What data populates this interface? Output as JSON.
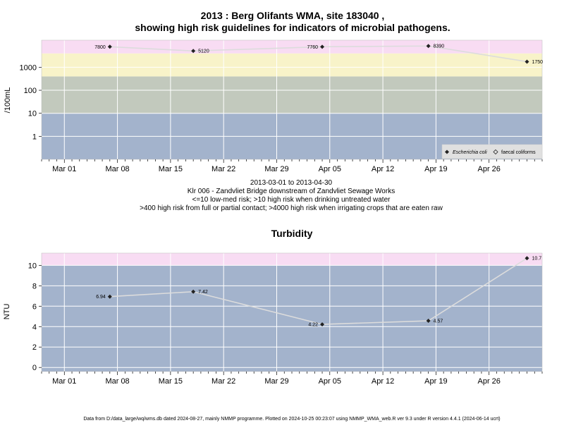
{
  "chart_data": [
    {
      "type": "scatter",
      "title_line1": "2013 : Berg Olifants WMA, site 183040 ,",
      "title_line2": "showing high risk guidelines for indicators of microbial pathogens.",
      "ylabel": "/100mL",
      "xlabel": "",
      "y_scale": "log10",
      "ylim": [
        0.1,
        15000
      ],
      "xlim": [
        "2013-02-26",
        "2013-05-03"
      ],
      "x_ticks": [
        {
          "date": "2013-03-01",
          "label": "Mar 01"
        },
        {
          "date": "2013-03-08",
          "label": "Mar 08"
        },
        {
          "date": "2013-03-15",
          "label": "Mar 15"
        },
        {
          "date": "2013-03-22",
          "label": "Mar 22"
        },
        {
          "date": "2013-03-29",
          "label": "Mar 29"
        },
        {
          "date": "2013-04-05",
          "label": "Apr 05"
        },
        {
          "date": "2013-04-12",
          "label": "Apr 12"
        },
        {
          "date": "2013-04-19",
          "label": "Apr 19"
        },
        {
          "date": "2013-04-26",
          "label": "Apr 26"
        }
      ],
      "y_ticks": [
        {
          "value": 1,
          "label": "1"
        },
        {
          "value": 10,
          "label": "10"
        },
        {
          "value": 100,
          "label": "100"
        },
        {
          "value": 1000,
          "label": "1000"
        }
      ],
      "bands": [
        {
          "from": 0.1,
          "to": 10,
          "color": "#a3b3cc"
        },
        {
          "from": 10,
          "to": 400,
          "color": "#c2c9bd"
        },
        {
          "from": 400,
          "to": 4000,
          "color": "#f8f3c9"
        },
        {
          "from": 4000,
          "to": 15000,
          "color": "#f8dcf3"
        }
      ],
      "series": [
        {
          "name": "Escherichia coli",
          "marker": "diamond-filled",
          "points": [
            {
              "x": "2013-03-07",
              "y": 7800,
              "label": "7800"
            },
            {
              "x": "2013-03-18",
              "y": 5120,
              "label": "5120"
            },
            {
              "x": "2013-04-04",
              "y": 7760,
              "label": "7760"
            },
            {
              "x": "2013-04-18",
              "y": 8390,
              "label": "8390"
            },
            {
              "x": "2013-05-01",
              "y": 1750,
              "label": "1750"
            }
          ]
        }
      ],
      "legend": {
        "position": "bottom-right",
        "entries": [
          {
            "marker": "diamond-filled",
            "label": "Escherichia coli",
            "italic": true
          },
          {
            "marker": "diamond-open",
            "label": "faecal coliforms",
            "italic": false
          }
        ]
      },
      "caption": [
        "2013-03-01 to 2013-04-30",
        "Klr 006 - Zandvliet Bridge downstream of Zandvliet Sewage Works",
        "<=10 low-med risk; >10 high risk when drinking untreated water",
        ">400 high risk from full or partial contact; >4000 high risk when irrigating crops that are eaten raw"
      ]
    },
    {
      "type": "scatter",
      "title": "Turbidity",
      "ylabel": "NTU",
      "xlabel": "",
      "y_scale": "linear",
      "ylim": [
        -0.4,
        11.2
      ],
      "xlim": [
        "2013-02-26",
        "2013-05-03"
      ],
      "x_ticks": [
        {
          "date": "2013-03-01",
          "label": "Mar 01"
        },
        {
          "date": "2013-03-08",
          "label": "Mar 08"
        },
        {
          "date": "2013-03-15",
          "label": "Mar 15"
        },
        {
          "date": "2013-03-22",
          "label": "Mar 22"
        },
        {
          "date": "2013-03-29",
          "label": "Mar 29"
        },
        {
          "date": "2013-04-05",
          "label": "Apr 05"
        },
        {
          "date": "2013-04-12",
          "label": "Apr 12"
        },
        {
          "date": "2013-04-19",
          "label": "Apr 19"
        },
        {
          "date": "2013-04-26",
          "label": "Apr 26"
        }
      ],
      "y_ticks": [
        {
          "value": 0,
          "label": "0"
        },
        {
          "value": 2,
          "label": "2"
        },
        {
          "value": 4,
          "label": "4"
        },
        {
          "value": 6,
          "label": "6"
        },
        {
          "value": 8,
          "label": "8"
        },
        {
          "value": 10,
          "label": "10"
        }
      ],
      "bands": [
        {
          "from": -0.4,
          "to": 10,
          "color": "#a3b3cc"
        },
        {
          "from": 10,
          "to": 11.2,
          "color": "#f8dcf3"
        }
      ],
      "series": [
        {
          "marker": "diamond-filled",
          "points": [
            {
              "x": "2013-03-07",
              "y": 6.94,
              "label": "6.94"
            },
            {
              "x": "2013-03-18",
              "y": 7.42,
              "label": "7.42"
            },
            {
              "x": "2013-04-04",
              "y": 4.22,
              "label": "4.22"
            },
            {
              "x": "2013-04-18",
              "y": 4.57,
              "label": "4.57"
            },
            {
              "x": "2013-05-01",
              "y": 10.7,
              "label": "10.7"
            }
          ]
        }
      ]
    }
  ],
  "footer": "Data from D:/data_large/wq/wms.db dated 2024-08-27, mainly NMMP programme. Plotted on 2024-10-25 00:23:07 using NMMP_WMA_web.R ver 9.3 under R version 4.4.1 (2024-06-14 ucrt)",
  "colors": {
    "grid": "#ffffff",
    "line": "#dcdcdc",
    "marker": "#222222",
    "legend_bg": "#e0e0e0"
  }
}
